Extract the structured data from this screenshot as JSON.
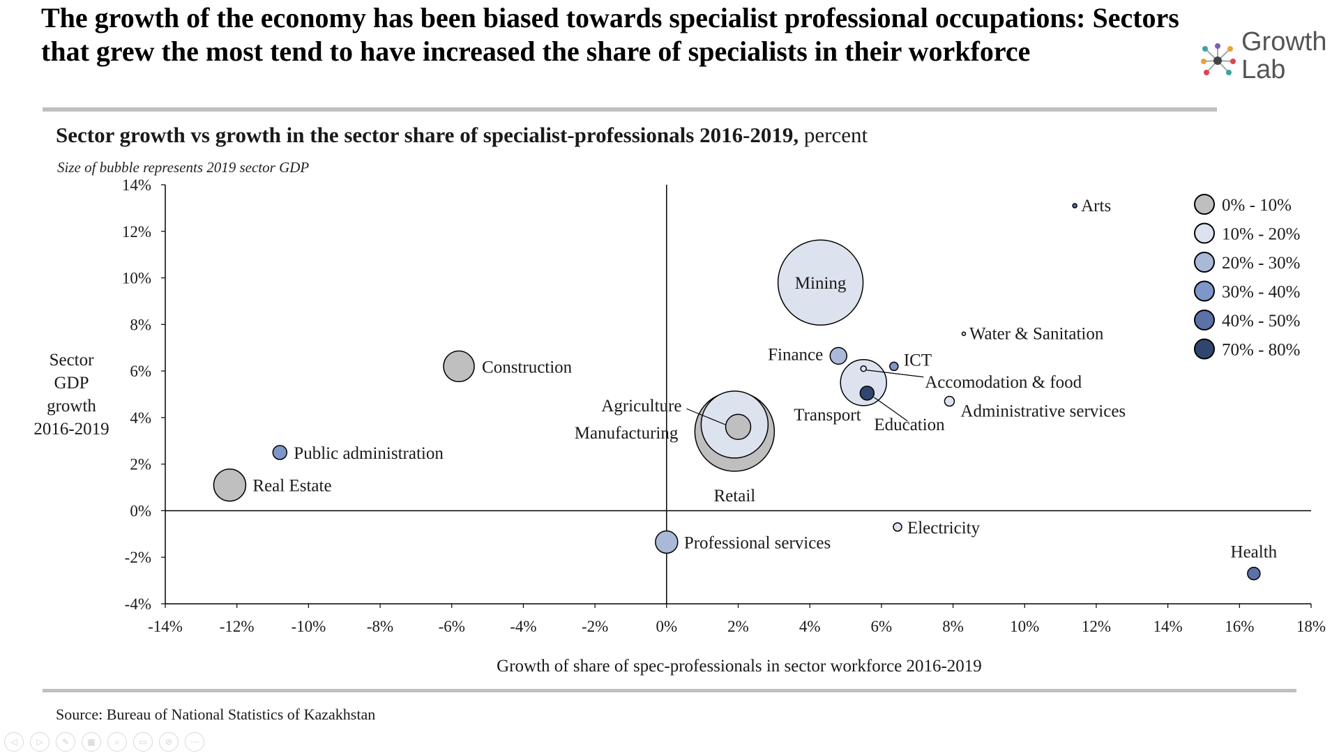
{
  "page": {
    "title": "The growth of the economy has been biased towards specialist professional occupations: Sectors that grew the most tend to have increased the share of specialists in their workforce",
    "logo_text": "Growth\nLab",
    "source": "Source: Bureau of National Statistics of Kazakhstan"
  },
  "nav_icons": [
    "prev-icon",
    "play-icon",
    "pen-icon",
    "slides-icon",
    "zoom-icon",
    "subtitles-icon",
    "camera-off-icon",
    "more-icon"
  ],
  "chart_data": {
    "type": "scatter",
    "title": "Sector growth vs growth in the sector share of specialist-professionals 2016-2019,",
    "title_unit": "percent",
    "subtitle": "Size of bubble represents 2019 sector GDP",
    "xlabel": "Growth of share of spec-professionals in sector workforce 2016-2019",
    "ylabel": "Sector\nGDP\ngrowth\n2016-2019",
    "xlim": [
      -14,
      18
    ],
    "ylim": [
      -4,
      14
    ],
    "xticks": [
      -14,
      -12,
      -10,
      -8,
      -6,
      -4,
      -2,
      0,
      2,
      4,
      6,
      8,
      10,
      12,
      14,
      16,
      18
    ],
    "yticks": [
      -4,
      -2,
      0,
      2,
      4,
      6,
      8,
      10,
      12,
      14
    ],
    "tick_suffix": "%",
    "legend_position": "top-right",
    "legend": [
      {
        "label": "0% - 10%",
        "color": "#bfbfbf"
      },
      {
        "label": "10% - 20%",
        "color": "#dde3ee"
      },
      {
        "label": "20% - 30%",
        "color": "#aab9d8"
      },
      {
        "label": "30% - 40%",
        "color": "#7f96c8"
      },
      {
        "label": "40% - 50%",
        "color": "#5a72a8"
      },
      {
        "label": "70% - 80%",
        "color": "#2f4770"
      }
    ],
    "points": [
      {
        "name": "Retail",
        "x": 1.9,
        "y": 3.4,
        "size": 57,
        "color": "#bfbfbf"
      },
      {
        "name": "Manufacturing",
        "x": 1.9,
        "y": 3.7,
        "size": 48,
        "color": "#dde3ee"
      },
      {
        "name": "Mining",
        "x": 4.3,
        "y": 9.8,
        "size": 61,
        "color": "#dde3ee"
      },
      {
        "name": "Transport",
        "x": 5.5,
        "y": 5.5,
        "size": 33,
        "color": "#dde3ee"
      },
      {
        "name": "Agriculture",
        "x": 2.0,
        "y": 3.6,
        "size": 18,
        "color": "#bfbfbf"
      },
      {
        "name": "Construction",
        "x": -5.8,
        "y": 6.2,
        "size": 22,
        "color": "#bfbfbf"
      },
      {
        "name": "Real Estate",
        "x": -12.2,
        "y": 1.1,
        "size": 23,
        "color": "#bfbfbf"
      },
      {
        "name": "Professional services",
        "x": 0.0,
        "y": -1.35,
        "size": 16,
        "color": "#aab9d8"
      },
      {
        "name": "Public administration",
        "x": -10.8,
        "y": 2.5,
        "size": 10,
        "color": "#7f96c8"
      },
      {
        "name": "Finance",
        "x": 4.8,
        "y": 6.65,
        "size": 12,
        "color": "#aab9d8"
      },
      {
        "name": "Education",
        "x": 5.6,
        "y": 5.05,
        "size": 10,
        "color": "#2f4770"
      },
      {
        "name": "ICT",
        "x": 6.35,
        "y": 6.2,
        "size": 6,
        "color": "#7f96c8"
      },
      {
        "name": "Accomodation & food",
        "x": 5.5,
        "y": 6.1,
        "size": 4,
        "color": "#dde3ee"
      },
      {
        "name": "Administrative services",
        "x": 7.9,
        "y": 4.7,
        "size": 7,
        "color": "#dde3ee"
      },
      {
        "name": "Water & Sanitation",
        "x": 8.3,
        "y": 7.6,
        "size": 2.5,
        "color": "#dde3ee"
      },
      {
        "name": "Arts",
        "x": 11.4,
        "y": 13.1,
        "size": 3,
        "color": "#5a72a8"
      },
      {
        "name": "Electricity",
        "x": 6.45,
        "y": -0.7,
        "size": 6,
        "color": "#dde3ee"
      },
      {
        "name": "Health",
        "x": 16.4,
        "y": -2.7,
        "size": 9,
        "color": "#5a72a8"
      }
    ]
  }
}
